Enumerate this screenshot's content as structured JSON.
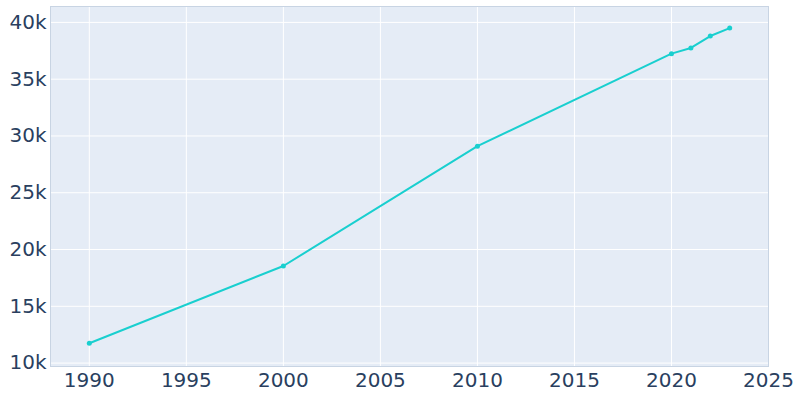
{
  "chart_data": {
    "type": "line",
    "x": [
      1990,
      2000,
      2010,
      2020,
      2021,
      2022,
      2023
    ],
    "values": [
      11750,
      18550,
      29100,
      37250,
      37750,
      38800,
      39500
    ],
    "color": "#19cfcf",
    "marker": "circle",
    "xlim": [
      1988,
      2025
    ],
    "ylim": [
      9700,
      41400
    ],
    "xticks": [
      1990,
      1995,
      2000,
      2005,
      2010,
      2015,
      2020,
      2025
    ],
    "yticks": [
      {
        "value": 10000,
        "label": "10k"
      },
      {
        "value": 15000,
        "label": "15k"
      },
      {
        "value": 20000,
        "label": "20k"
      },
      {
        "value": 25000,
        "label": "25k"
      },
      {
        "value": 30000,
        "label": "30k"
      },
      {
        "value": 35000,
        "label": "35k"
      },
      {
        "value": 40000,
        "label": "40k"
      }
    ],
    "grid": true
  }
}
